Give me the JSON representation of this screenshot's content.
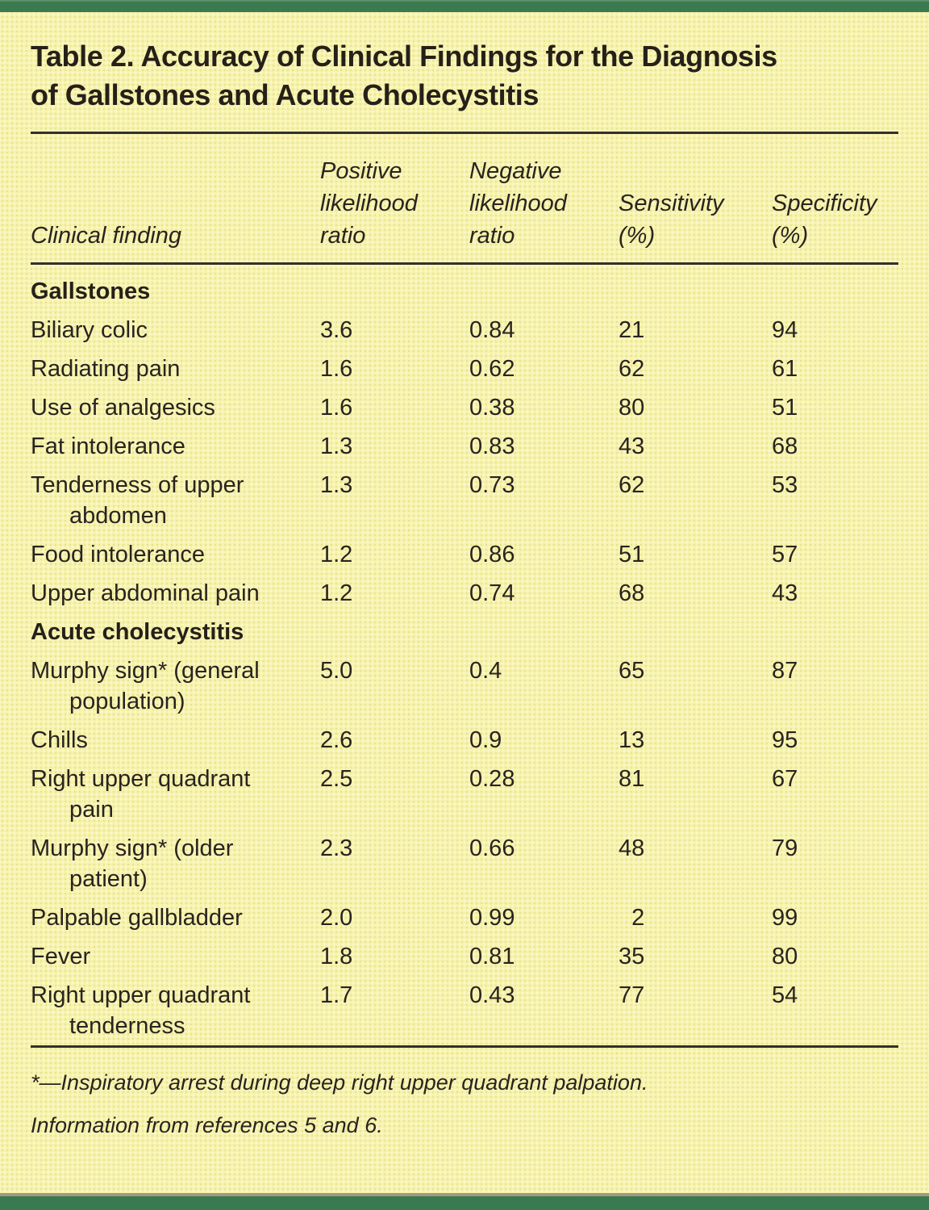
{
  "page": {
    "title_lines": [
      "Table 2. Accuracy of Clinical Findings for the Diagnosis",
      "of Gallstones and Acute Cholecystitis"
    ]
  },
  "colors": {
    "accent_green": "#3a7a50",
    "background_yellow": "#f7f3ae",
    "rule_dark": "#33302a",
    "tan_rule": "#a09a7d",
    "text": "#29231f"
  },
  "table": {
    "columns": [
      {
        "label": "Clinical finding",
        "lines": [
          "Clinical finding"
        ]
      },
      {
        "label": "Positive likelihood ratio",
        "lines": [
          "Positive",
          "likelihood",
          "ratio"
        ]
      },
      {
        "label": "Negative likelihood ratio",
        "lines": [
          "Negative",
          "likelihood",
          "ratio"
        ]
      },
      {
        "label": "Sensitivity (%)",
        "lines": [
          "Sensitivity",
          "(%)"
        ]
      },
      {
        "label": "Specificity (%)",
        "lines": [
          "Specificity",
          "(%)"
        ]
      }
    ],
    "rows": [
      {
        "type": "section",
        "label": "Gallstones"
      },
      {
        "type": "data",
        "finding": [
          "Biliary colic"
        ],
        "plr": "3.6",
        "nlr": "0.84",
        "sens": "21",
        "spec": "94"
      },
      {
        "type": "data",
        "finding": [
          "Radiating pain"
        ],
        "plr": "1.6",
        "nlr": "0.62",
        "sens": "62",
        "spec": "61"
      },
      {
        "type": "data",
        "finding": [
          "Use of analgesics"
        ],
        "plr": "1.6",
        "nlr": "0.38",
        "sens": "80",
        "spec": "51"
      },
      {
        "type": "data",
        "finding": [
          "Fat intolerance"
        ],
        "plr": "1.3",
        "nlr": "0.83",
        "sens": "43",
        "spec": "68"
      },
      {
        "type": "data",
        "finding": [
          "Tenderness of upper",
          "abdomen"
        ],
        "plr": "1.3",
        "nlr": "0.73",
        "sens": "62",
        "spec": "53"
      },
      {
        "type": "data",
        "finding": [
          "Food intolerance"
        ],
        "plr": "1.2",
        "nlr": "0.86",
        "sens": "51",
        "spec": "57"
      },
      {
        "type": "data",
        "finding": [
          "Upper abdominal pain"
        ],
        "plr": "1.2",
        "nlr": "0.74",
        "sens": "68",
        "spec": "43"
      },
      {
        "type": "section",
        "label": "Acute cholecystitis"
      },
      {
        "type": "data",
        "finding": [
          "Murphy sign* (general",
          "population)"
        ],
        "plr": "5.0",
        "nlr": "0.4",
        "sens": "65",
        "spec": "87"
      },
      {
        "type": "data",
        "finding": [
          "Chills"
        ],
        "plr": "2.6",
        "nlr": "0.9",
        "sens": "13",
        "spec": "95"
      },
      {
        "type": "data",
        "finding": [
          "Right upper quadrant",
          "pain"
        ],
        "plr": "2.5",
        "nlr": "0.28",
        "sens": "81",
        "spec": "67"
      },
      {
        "type": "data",
        "finding": [
          "Murphy sign* (older",
          "patient)"
        ],
        "plr": "2.3",
        "nlr": "0.66",
        "sens": "48",
        "spec": "79"
      },
      {
        "type": "data",
        "finding": [
          "Palpable gallbladder"
        ],
        "plr": "2.0",
        "nlr": "0.99",
        "sens": "  2",
        "spec": "99"
      },
      {
        "type": "data",
        "finding": [
          "Fever"
        ],
        "plr": "1.8",
        "nlr": "0.81",
        "sens": "35",
        "spec": "80"
      },
      {
        "type": "data",
        "finding": [
          "Right upper quadrant",
          "tenderness"
        ],
        "plr": "1.7",
        "nlr": "0.43",
        "sens": "77",
        "spec": "54"
      }
    ]
  },
  "footnotes": {
    "asterisk": "*—Inspiratory arrest during deep right upper quadrant palpation.",
    "source": "Information from references 5 and 6."
  }
}
